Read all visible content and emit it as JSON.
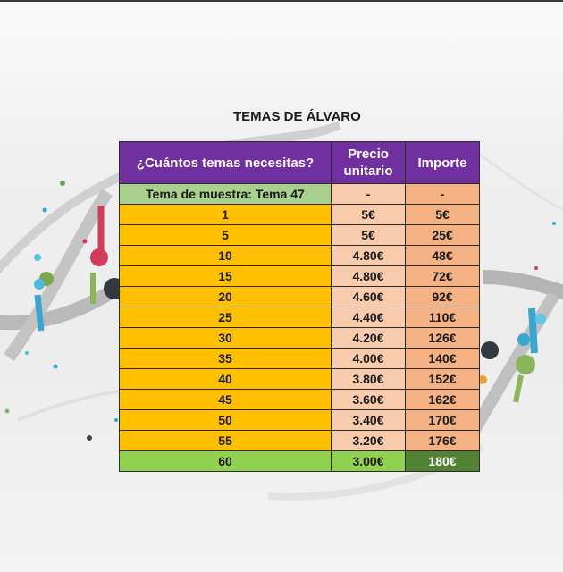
{
  "title": "TEMAS DE ÁLVARO",
  "headers": {
    "quantity": "¿Cuántos temas necesitas?",
    "unit_price": "Precio unitario",
    "amount": "Importe"
  },
  "sample_row": {
    "quantity": "Tema de muestra: Tema 47",
    "unit_price": "-",
    "amount": "-"
  },
  "rows": [
    {
      "quantity": "1",
      "unit_price": "5€",
      "amount": "5€"
    },
    {
      "quantity": "5",
      "unit_price": "5€",
      "amount": "25€"
    },
    {
      "quantity": "10",
      "unit_price": "4.80€",
      "amount": "48€"
    },
    {
      "quantity": "15",
      "unit_price": "4.80€",
      "amount": "72€"
    },
    {
      "quantity": "20",
      "unit_price": "4.60€",
      "amount": "92€"
    },
    {
      "quantity": "25",
      "unit_price": "4.40€",
      "amount": "110€"
    },
    {
      "quantity": "30",
      "unit_price": "4.20€",
      "amount": "126€"
    },
    {
      "quantity": "35",
      "unit_price": "4.00€",
      "amount": "140€"
    },
    {
      "quantity": "40",
      "unit_price": "3.80€",
      "amount": "152€"
    },
    {
      "quantity": "45",
      "unit_price": "3.60€",
      "amount": "162€"
    },
    {
      "quantity": "50",
      "unit_price": "3.40€",
      "amount": "170€"
    },
    {
      "quantity": "55",
      "unit_price": "3.20€",
      "amount": "176€"
    },
    {
      "quantity": "60",
      "unit_price": "3.00€",
      "amount": "180€"
    }
  ],
  "colors": {
    "header": "#7030a0",
    "quantity": "#ffc000",
    "unit_price": "#f8cbad",
    "amount": "#f4b183",
    "sample": "#a9d08e",
    "final_row": "#92d050",
    "final_amount": "#548235"
  },
  "background": "dna-helix-decoration"
}
